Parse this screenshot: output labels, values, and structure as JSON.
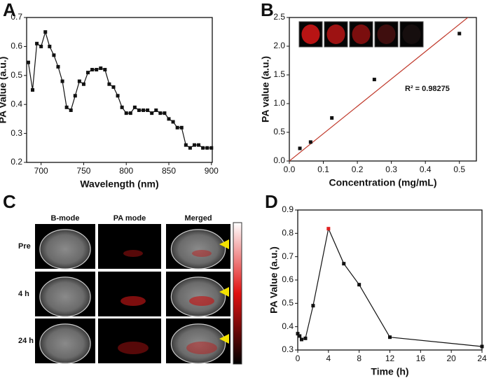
{
  "chart_data": [
    {
      "type": "line",
      "panel": "A",
      "x_label": "Wavelength (nm)",
      "y_label": "PA Value (a.u.)",
      "color": "#111111",
      "x": [
        685,
        690,
        695,
        700,
        705,
        710,
        715,
        720,
        725,
        730,
        735,
        740,
        745,
        750,
        755,
        760,
        765,
        770,
        775,
        780,
        785,
        790,
        795,
        800,
        805,
        810,
        815,
        820,
        825,
        830,
        835,
        840,
        845,
        850,
        855,
        860,
        865,
        870,
        875,
        880,
        885,
        890,
        895,
        900
      ],
      "values": [
        0.545,
        0.45,
        0.61,
        0.6,
        0.65,
        0.6,
        0.57,
        0.53,
        0.48,
        0.39,
        0.38,
        0.43,
        0.48,
        0.47,
        0.51,
        0.52,
        0.52,
        0.525,
        0.52,
        0.47,
        0.46,
        0.43,
        0.39,
        0.37,
        0.37,
        0.39,
        0.38,
        0.38,
        0.38,
        0.37,
        0.38,
        0.37,
        0.37,
        0.35,
        0.34,
        0.32,
        0.32,
        0.26,
        0.25,
        0.26,
        0.26,
        0.25,
        0.25,
        0.25
      ],
      "xlim": [
        683,
        901
      ],
      "xticks": [
        700,
        750,
        800,
        850,
        900
      ],
      "ylim": [
        0.2,
        0.7
      ],
      "yticks": [
        0.2,
        0.3,
        0.4,
        0.5,
        0.6,
        0.7
      ]
    },
    {
      "type": "scatter",
      "panel": "B",
      "x_label": "Concentration (mg/mL)",
      "y_label": "PA value (a.u.)",
      "color": "#111111",
      "x": [
        0.031,
        0.0625,
        0.125,
        0.25,
        0.5
      ],
      "values": [
        0.22,
        0.33,
        0.75,
        1.42,
        2.22
      ],
      "fit_line": {
        "x": [
          0,
          0.55
        ],
        "y": [
          0,
          2.62
        ],
        "color": "#c0392b"
      },
      "annotation": "R² = 0.98275",
      "xlim": [
        0,
        0.55
      ],
      "xticks": [
        {
          "value": 0,
          "label": "0.0"
        },
        0.1,
        0.2,
        0.3,
        0.4,
        0.5
      ],
      "ylim": [
        0,
        2.5
      ],
      "yticks": [
        {
          "value": 0,
          "label": "0.0"
        },
        0.5,
        {
          "value": 1,
          "label": "1.0"
        },
        1.5,
        {
          "value": 2,
          "label": "2.0"
        },
        2.5
      ]
    },
    {
      "type": "line",
      "panel": "D",
      "x_label": "Time (h)",
      "y_label": "PA Value (a.u.)",
      "color": "#111111",
      "x": [
        0,
        0.25,
        0.5,
        1,
        2,
        4,
        6,
        8,
        12,
        24
      ],
      "values": [
        0.37,
        0.36,
        0.345,
        0.35,
        0.49,
        0.82,
        0.67,
        0.58,
        0.355,
        0.315
      ],
      "marker_colors": [
        "#111111",
        "#111111",
        "#111111",
        "#111111",
        "#111111",
        "#e02020",
        "#111111",
        "#111111",
        "#111111",
        "#111111"
      ],
      "xlim": [
        0,
        24
      ],
      "xticks": [
        0,
        4,
        8,
        12,
        16,
        20,
        24
      ],
      "ylim": [
        0.3,
        0.9
      ],
      "yticks": [
        0.3,
        0.4,
        0.5,
        0.6,
        0.7,
        0.8,
        0.9
      ]
    }
  ],
  "panel_c": {
    "panel": "C",
    "columns": [
      "B-mode",
      "PA mode",
      "Merged"
    ],
    "rows": [
      "Pre",
      "4 h",
      "24 h"
    ]
  }
}
